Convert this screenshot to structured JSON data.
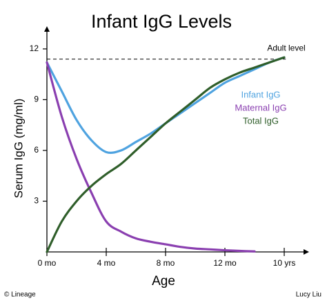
{
  "chart_data": {
    "type": "line",
    "title": "Infant IgG Levels",
    "x_label": "Age",
    "y_label": "Serum IgG (mg/ml)",
    "x": [
      0,
      1,
      2,
      3,
      4,
      5,
      6,
      7,
      8,
      9,
      10,
      11,
      12,
      13,
      14,
      15,
      16
    ],
    "xlim": [
      0,
      17.5
    ],
    "xticks": [
      {
        "value": 0,
        "label": "0 mo"
      },
      {
        "value": 4,
        "label": "4 mo"
      },
      {
        "value": 8,
        "label": "8 mo"
      },
      {
        "value": 12,
        "label": "12 mo"
      },
      {
        "value": 16,
        "label": "10 yrs"
      }
    ],
    "ylim": [
      0,
      13.3
    ],
    "yticks": [
      3,
      6,
      9,
      12
    ],
    "reference_line": {
      "value": 11.4,
      "label": "Adult level"
    },
    "series": [
      {
        "name": "Infant IgG",
        "color": "#4fa3e0",
        "values": [
          11.2,
          9.5,
          7.8,
          6.6,
          5.9,
          6.0,
          6.5,
          7.0,
          7.6,
          8.2,
          8.8,
          9.4,
          10.0,
          10.4,
          10.8,
          11.2,
          11.5
        ]
      },
      {
        "name": "Maternal IgG",
        "color": "#8a3fb0",
        "values": [
          11.2,
          8.0,
          5.5,
          3.5,
          1.8,
          1.2,
          0.8,
          0.6,
          0.45,
          0.3,
          0.2,
          0.15,
          0.1,
          0.06,
          0.03,
          null,
          null
        ]
      },
      {
        "name": "Total IgG",
        "color": "#2f5e2a",
        "values": [
          0,
          1.8,
          3.0,
          3.9,
          4.6,
          5.2,
          6.0,
          6.8,
          7.6,
          8.3,
          9.0,
          9.7,
          10.2,
          10.6,
          10.9,
          11.2,
          11.5
        ]
      }
    ],
    "footer_left": "© Lineage",
    "footer_right": "Lucy Liu"
  }
}
